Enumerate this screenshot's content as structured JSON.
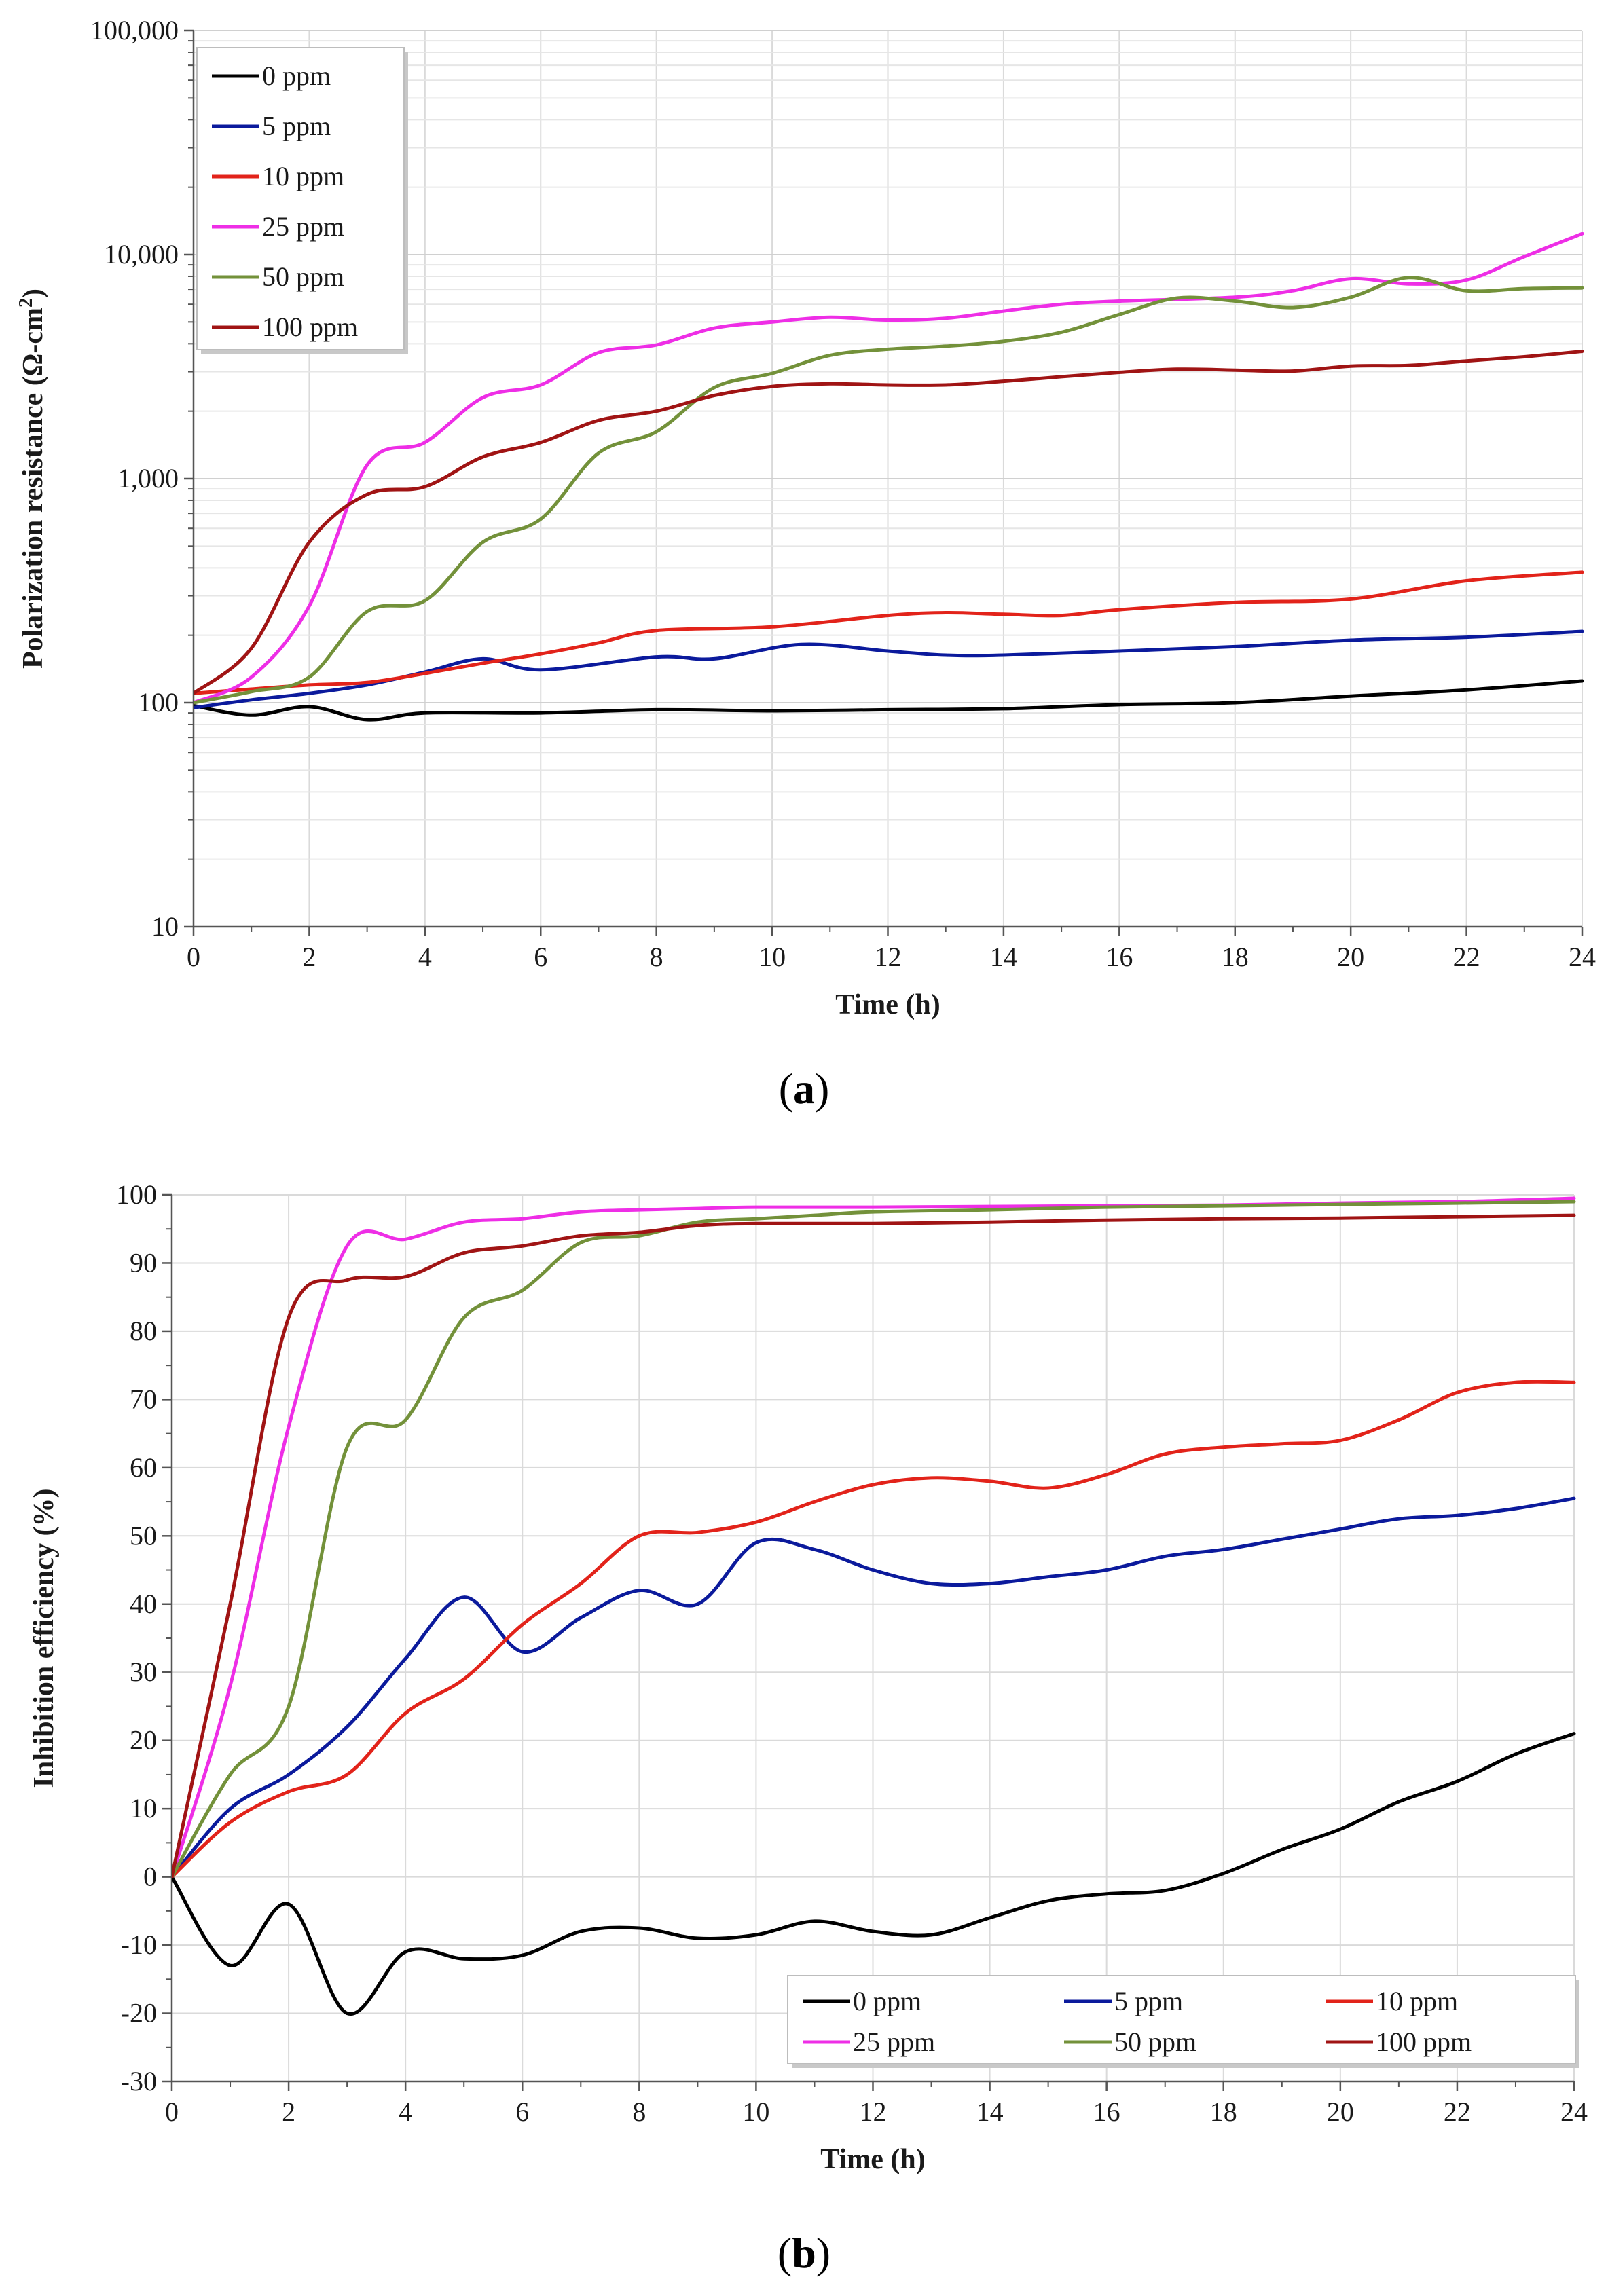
{
  "colors": {
    "0 ppm": "#000000",
    "5 ppm": "#0b1a9c",
    "10 ppm": "#e2231a",
    "25 ppm": "#ee2ee6",
    "50 ppm": "#73913a",
    "100 ppm": "#a01414"
  },
  "chart_data": [
    {
      "type": "line",
      "caption_prefix": "(",
      "caption_letter": "a",
      "caption_suffix": ")",
      "xlabel": "Time (h)",
      "ylabel": "Polarization resistance (Ω-cm²)",
      "ylabel_main": "Polarization resistance (Ω-cm",
      "ylabel_sup": "2",
      "ylabel_end": ")",
      "yscale": "log",
      "xlim": [
        0,
        24
      ],
      "ylim": [
        10,
        100000
      ],
      "xticks": [
        "0",
        "2",
        "4",
        "6",
        "8",
        "10",
        "12",
        "14",
        "16",
        "18",
        "20",
        "22",
        "24"
      ],
      "yticks": [
        "10",
        "100",
        "1,000",
        "10,000",
        "100,000"
      ],
      "legend_position": "top-left",
      "series": [
        {
          "name": "0 ppm",
          "x": [
            0,
            1,
            2,
            3,
            4,
            6,
            8,
            10,
            12,
            14,
            16,
            18,
            20,
            22,
            24
          ],
          "values": [
            97,
            88,
            96,
            84,
            90,
            90,
            93,
            92,
            93,
            94,
            98,
            100,
            107,
            114,
            125
          ]
        },
        {
          "name": "5 ppm",
          "x": [
            0,
            1,
            2,
            3,
            4,
            5,
            6,
            8,
            9,
            10.5,
            12,
            13,
            14,
            16,
            18,
            20,
            22,
            24
          ],
          "values": [
            95,
            103,
            110,
            120,
            137,
            157,
            140,
            160,
            157,
            182,
            170,
            163,
            163,
            170,
            178,
            190,
            196,
            208
          ]
        },
        {
          "name": "10 ppm",
          "x": [
            0,
            1,
            2,
            3,
            4,
            5,
            6,
            7,
            8,
            10,
            12,
            13,
            14,
            15,
            16,
            18,
            20,
            22,
            24
          ],
          "values": [
            110,
            115,
            120,
            123,
            135,
            150,
            165,
            185,
            210,
            218,
            245,
            252,
            248,
            245,
            260,
            280,
            290,
            350,
            382
          ]
        },
        {
          "name": "25 ppm",
          "x": [
            0,
            1,
            2,
            3,
            4,
            5,
            6,
            7,
            8,
            9,
            10,
            11,
            12,
            13,
            14,
            15,
            16,
            18,
            19,
            20,
            21,
            22,
            23,
            24
          ],
          "values": [
            100,
            130,
            270,
            1150,
            1450,
            2300,
            2620,
            3650,
            3950,
            4700,
            5000,
            5250,
            5100,
            5200,
            5600,
            6000,
            6200,
            6450,
            6900,
            7800,
            7400,
            7700,
            9800,
            12400
          ]
        },
        {
          "name": "50 ppm",
          "x": [
            0,
            1,
            2,
            3,
            4,
            5,
            6,
            7,
            8,
            9,
            10,
            11,
            12,
            13,
            14,
            15,
            16,
            17,
            18,
            19,
            20,
            21,
            22,
            23,
            24
          ],
          "values": [
            100,
            112,
            130,
            255,
            285,
            520,
            660,
            1300,
            1620,
            2550,
            2950,
            3550,
            3780,
            3900,
            4100,
            4500,
            5400,
            6400,
            6200,
            5800,
            6450,
            7900,
            6900,
            7050,
            7100
          ]
        },
        {
          "name": "100 ppm",
          "x": [
            0,
            1,
            2,
            3,
            4,
            5,
            6,
            7,
            8,
            9,
            10,
            11,
            12,
            13,
            14,
            15,
            16,
            17,
            18,
            19,
            20,
            21,
            22,
            23,
            24
          ],
          "values": [
            110,
            175,
            520,
            850,
            920,
            1250,
            1450,
            1820,
            2000,
            2350,
            2580,
            2650,
            2620,
            2620,
            2720,
            2850,
            2980,
            3080,
            3050,
            3020,
            3180,
            3200,
            3350,
            3500,
            3700
          ]
        }
      ]
    },
    {
      "type": "line",
      "caption_prefix": "(",
      "caption_letter": "b",
      "caption_suffix": ")",
      "xlabel": "Time (h)",
      "ylabel": "Inhibition efficiency (%)",
      "yscale": "linear",
      "xlim": [
        0,
        24
      ],
      "ylim": [
        -30,
        100
      ],
      "xticks": [
        "0",
        "2",
        "4",
        "6",
        "8",
        "10",
        "12",
        "14",
        "16",
        "18",
        "20",
        "22",
        "24"
      ],
      "yticks": [
        "-30",
        "-20",
        "-10",
        "0",
        "10",
        "20",
        "30",
        "40",
        "50",
        "60",
        "70",
        "80",
        "90",
        "100"
      ],
      "legend_position": "bottom-right",
      "series": [
        {
          "name": "0 ppm",
          "x": [
            0,
            1,
            2,
            3,
            4,
            5,
            6,
            7,
            8,
            9,
            10,
            11,
            12,
            13,
            14,
            15,
            16,
            17,
            18,
            19,
            20,
            21,
            22,
            23,
            24
          ],
          "values": [
            0,
            -13,
            -4,
            -20,
            -11,
            -12,
            -11.5,
            -8,
            -7.5,
            -9,
            -8.5,
            -6.5,
            -8,
            -8.5,
            -6,
            -3.5,
            -2.5,
            -2,
            0.5,
            4,
            7,
            11,
            14,
            18,
            21
          ]
        },
        {
          "name": "5 ppm",
          "x": [
            0,
            1,
            2,
            3,
            4,
            5,
            6,
            7,
            8,
            9,
            10,
            11,
            12,
            13,
            14,
            15,
            16,
            17,
            18,
            19,
            20,
            21,
            22,
            23,
            24
          ],
          "values": [
            0,
            10,
            15,
            22,
            32,
            41,
            33,
            38,
            42,
            40,
            49,
            48,
            45,
            43,
            43,
            44,
            45,
            47,
            48,
            49.5,
            51,
            52.5,
            53,
            54,
            55.5
          ]
        },
        {
          "name": "10 ppm",
          "x": [
            0,
            1,
            2,
            3,
            4,
            5,
            6,
            7,
            8,
            9,
            10,
            11,
            12,
            13,
            14,
            15,
            16,
            17,
            18,
            19,
            20,
            21,
            22,
            23,
            24
          ],
          "values": [
            0,
            8,
            12.5,
            15,
            24,
            29,
            37,
            43,
            50,
            50.5,
            52,
            55,
            57.5,
            58.5,
            58,
            57,
            59,
            62,
            63,
            63.5,
            64,
            67,
            71,
            72.5,
            72.5
          ]
        },
        {
          "name": "25 ppm",
          "x": [
            0,
            1,
            2,
            3,
            4,
            5,
            6,
            7,
            8,
            9,
            10,
            12,
            14,
            16,
            18,
            20,
            22,
            24
          ],
          "values": [
            0,
            28,
            66,
            92.5,
            93.5,
            96,
            96.5,
            97.5,
            97.8,
            98,
            98.2,
            98.2,
            98.3,
            98.4,
            98.5,
            98.8,
            99,
            99.5
          ]
        },
        {
          "name": "50 ppm",
          "x": [
            0,
            1,
            2,
            3,
            4,
            5,
            6,
            7,
            8,
            9,
            10,
            11,
            12,
            14,
            16,
            18,
            20,
            22,
            24
          ],
          "values": [
            0,
            15,
            25,
            63,
            67,
            82,
            86,
            93,
            94,
            96,
            96.5,
            97,
            97.5,
            97.8,
            98.2,
            98.4,
            98.6,
            98.8,
            99
          ]
        },
        {
          "name": "100 ppm",
          "x": [
            0,
            1,
            2,
            3,
            4,
            5,
            6,
            7,
            8,
            9,
            10,
            12,
            14,
            16,
            18,
            20,
            22,
            24
          ],
          "values": [
            0,
            40,
            82,
            87.5,
            88,
            91.5,
            92.5,
            94,
            94.5,
            95.5,
            95.8,
            95.8,
            96,
            96.3,
            96.5,
            96.6,
            96.8,
            97
          ]
        }
      ]
    }
  ]
}
